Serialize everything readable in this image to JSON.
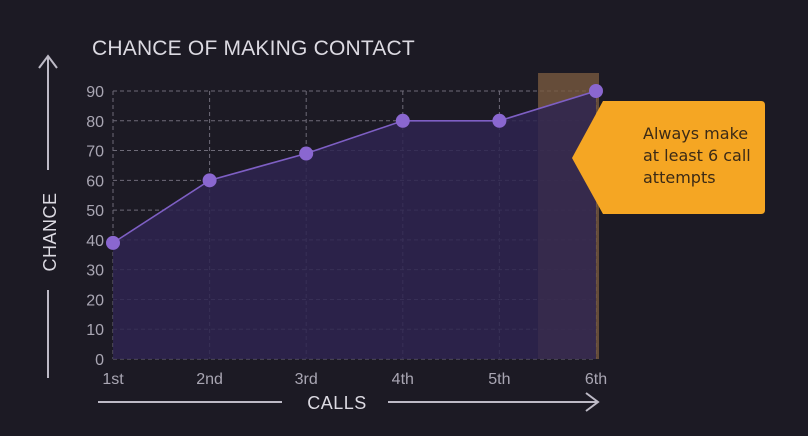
{
  "chart_data": {
    "type": "area",
    "title": "CHANCE OF MAKING CONTACT",
    "xlabel": "CALLS",
    "ylabel": "CHANCE",
    "categories": [
      "1st",
      "2nd",
      "3rd",
      "4th",
      "5th",
      "6th"
    ],
    "values": [
      39,
      60,
      69,
      80,
      80,
      90
    ],
    "yticks": [
      0,
      10,
      20,
      30,
      40,
      50,
      60,
      70,
      80,
      90
    ],
    "ylim": [
      0,
      90
    ],
    "grid": true,
    "highlight_category": "6th",
    "annotation": {
      "lines": [
        "Always make",
        "at least 6 call",
        "attempts"
      ]
    },
    "colors": {
      "background": "#1c1a24",
      "line": "#7e5fc4",
      "point": "#8a67d0",
      "area": "#2e2550",
      "grid": "#6e6b78",
      "highlight": "#7a5b3f",
      "callout": "#f5a623"
    }
  }
}
